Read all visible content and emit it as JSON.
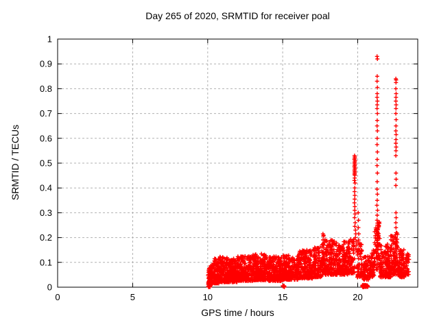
{
  "chart_data": {
    "type": "scatter",
    "title": "Day 265 of 2020, SRMTID for receiver poal",
    "xlabel": "GPS time / hours",
    "ylabel": "SRMTID / TECUs",
    "xlim": [
      0,
      24
    ],
    "ylim": [
      0,
      1
    ],
    "xticks": [
      0,
      5,
      10,
      15,
      20
    ],
    "yticks": [
      0,
      0.1,
      0.2,
      0.3,
      0.4,
      0.5,
      0.6,
      0.7,
      0.8,
      0.9,
      1
    ],
    "grid": true,
    "grid_color": "#b0b0b0",
    "legend": "none",
    "background": "#ffffff",
    "border_color": "#000000",
    "marker": {
      "shape": "plus",
      "color": "#ff0000",
      "size": 7,
      "stroke_width": 1.4
    },
    "series": [
      {
        "name": "SRMTID",
        "color": "#ff0000",
        "points": [
          [
            19.79,
            0.53
          ],
          [
            19.81,
            0.525
          ],
          [
            19.8,
            0.52
          ],
          [
            19.78,
            0.515
          ],
          [
            19.82,
            0.51
          ],
          [
            19.8,
            0.505
          ],
          [
            19.79,
            0.5
          ],
          [
            19.81,
            0.495
          ],
          [
            19.8,
            0.49
          ],
          [
            19.78,
            0.485
          ],
          [
            19.82,
            0.48
          ],
          [
            19.8,
            0.475
          ],
          [
            19.79,
            0.47
          ],
          [
            19.81,
            0.465
          ],
          [
            19.8,
            0.46
          ],
          [
            19.79,
            0.455
          ],
          [
            19.81,
            0.45
          ],
          [
            19.8,
            0.44
          ],
          [
            19.78,
            0.43
          ],
          [
            19.82,
            0.42
          ],
          [
            19.8,
            0.4
          ],
          [
            19.79,
            0.385
          ],
          [
            19.81,
            0.37
          ],
          [
            19.8,
            0.355
          ],
          [
            19.78,
            0.34
          ],
          [
            19.81,
            0.325
          ],
          [
            19.8,
            0.31
          ],
          [
            19.82,
            0.295
          ],
          [
            19.79,
            0.28
          ],
          [
            19.83,
            0.26
          ],
          [
            19.81,
            0.245
          ],
          [
            19.85,
            0.23
          ],
          [
            19.87,
            0.215
          ],
          [
            19.84,
            0.2
          ],
          [
            19.89,
            0.185
          ],
          [
            19.92,
            0.17
          ],
          [
            19.88,
            0.155
          ],
          [
            19.95,
            0.142
          ],
          [
            19.99,
            0.13
          ],
          [
            20.03,
            0.3
          ],
          [
            20.05,
            0.27
          ],
          [
            20.04,
            0.24
          ],
          [
            20.07,
            0.215
          ],
          [
            20.06,
            0.19
          ],
          [
            20.1,
            0.17
          ],
          [
            20.13,
            0.15
          ],
          [
            20.17,
            0.135
          ],
          [
            21.29,
            0.93
          ],
          [
            21.31,
            0.92
          ],
          [
            21.3,
            0.85
          ],
          [
            21.29,
            0.83
          ],
          [
            21.31,
            0.805
          ],
          [
            21.3,
            0.78
          ],
          [
            21.29,
            0.765
          ],
          [
            21.31,
            0.75
          ],
          [
            21.3,
            0.735
          ],
          [
            21.29,
            0.72
          ],
          [
            21.31,
            0.7
          ],
          [
            21.3,
            0.672
          ],
          [
            21.29,
            0.65
          ],
          [
            21.31,
            0.63
          ],
          [
            21.3,
            0.6
          ],
          [
            21.29,
            0.575
          ],
          [
            21.31,
            0.545
          ],
          [
            21.3,
            0.515
          ],
          [
            21.29,
            0.49
          ],
          [
            21.31,
            0.46
          ],
          [
            21.3,
            0.425
          ],
          [
            21.29,
            0.395
          ],
          [
            21.31,
            0.375
          ],
          [
            21.3,
            0.35
          ],
          [
            21.28,
            0.33
          ],
          [
            21.32,
            0.31
          ],
          [
            21.3,
            0.29
          ],
          [
            21.29,
            0.27
          ],
          [
            21.31,
            0.25
          ],
          [
            21.3,
            0.23
          ],
          [
            21.33,
            0.21
          ],
          [
            21.27,
            0.195
          ],
          [
            21.31,
            0.18
          ],
          [
            21.25,
            0.165
          ],
          [
            21.35,
            0.15
          ],
          [
            21.3,
            0.138
          ],
          [
            21.38,
            0.128
          ],
          [
            21.22,
            0.12
          ],
          [
            22.54,
            0.84
          ],
          [
            22.56,
            0.835
          ],
          [
            22.55,
            0.825
          ],
          [
            22.54,
            0.8
          ],
          [
            22.56,
            0.78
          ],
          [
            22.55,
            0.765
          ],
          [
            22.54,
            0.75
          ],
          [
            22.56,
            0.735
          ],
          [
            22.55,
            0.72
          ],
          [
            22.54,
            0.7
          ],
          [
            22.56,
            0.675
          ],
          [
            22.55,
            0.65
          ],
          [
            22.54,
            0.63
          ],
          [
            22.56,
            0.615
          ],
          [
            22.55,
            0.595
          ],
          [
            22.54,
            0.58
          ],
          [
            22.56,
            0.565
          ],
          [
            22.55,
            0.55
          ],
          [
            22.54,
            0.53
          ],
          [
            22.55,
            0.46
          ],
          [
            22.56,
            0.435
          ],
          [
            22.54,
            0.41
          ],
          [
            22.55,
            0.3
          ],
          [
            22.56,
            0.28
          ],
          [
            22.54,
            0.26
          ],
          [
            22.55,
            0.24
          ],
          [
            22.57,
            0.22
          ],
          [
            22.53,
            0.2
          ],
          [
            22.55,
            0.185
          ],
          [
            22.58,
            0.17
          ],
          [
            22.52,
            0.155
          ],
          [
            22.55,
            0.142
          ],
          [
            22.6,
            0.13
          ],
          [
            22.5,
            0.12
          ]
        ],
        "cloud_segments_format": "[x_start, x_end, y_min, y_max, count, skew_exponent]",
        "cloud_segments": [
          [
            10.02,
            10.35,
            0.01,
            0.095,
            80,
            1.4
          ],
          [
            10.35,
            10.8,
            0.015,
            0.115,
            110,
            1.5
          ],
          [
            10.8,
            11.3,
            0.02,
            0.125,
            120,
            1.5
          ],
          [
            11.3,
            12.0,
            0.02,
            0.115,
            170,
            1.5
          ],
          [
            12.0,
            13.0,
            0.025,
            0.125,
            230,
            1.5
          ],
          [
            13.0,
            14.0,
            0.028,
            0.135,
            230,
            1.5
          ],
          [
            14.0,
            15.0,
            0.025,
            0.125,
            220,
            1.5
          ],
          [
            15.0,
            16.0,
            0.03,
            0.13,
            200,
            1.5
          ],
          [
            16.0,
            17.0,
            0.035,
            0.15,
            200,
            1.5
          ],
          [
            17.0,
            17.6,
            0.04,
            0.16,
            110,
            1.5
          ],
          [
            17.6,
            17.85,
            0.05,
            0.215,
            60,
            1.3
          ],
          [
            17.85,
            18.6,
            0.05,
            0.19,
            140,
            1.5
          ],
          [
            18.6,
            19.35,
            0.05,
            0.185,
            130,
            1.5
          ],
          [
            19.35,
            19.78,
            0.055,
            0.2,
            80,
            1.4
          ],
          [
            19.95,
            20.35,
            0.04,
            0.18,
            60,
            1.5
          ],
          [
            20.35,
            20.75,
            0.03,
            0.125,
            70,
            1.5
          ],
          [
            20.75,
            21.12,
            0.04,
            0.155,
            70,
            1.5
          ],
          [
            21.12,
            21.48,
            0.07,
            0.27,
            70,
            1.5
          ],
          [
            21.48,
            22.2,
            0.04,
            0.175,
            150,
            1.6
          ],
          [
            22.2,
            22.42,
            0.05,
            0.21,
            45,
            1.5
          ],
          [
            22.42,
            22.7,
            0.05,
            0.22,
            60,
            1.5
          ],
          [
            22.7,
            23.1,
            0.04,
            0.155,
            90,
            1.5
          ],
          [
            23.1,
            23.42,
            0.05,
            0.135,
            45,
            1.4
          ],
          [
            10.04,
            10.16,
            0.0,
            0.006,
            12,
            1.0
          ],
          [
            15.0,
            15.12,
            0.0,
            0.006,
            12,
            1.0
          ],
          [
            20.3,
            20.68,
            0.0,
            0.009,
            48,
            1.0
          ]
        ],
        "random_seed": 1337
      }
    ]
  }
}
